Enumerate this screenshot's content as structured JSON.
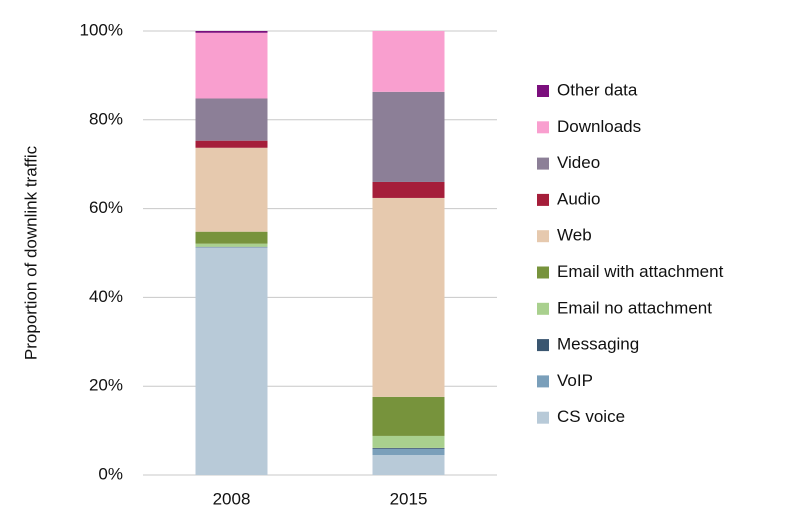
{
  "chart_data": {
    "type": "stacked_bar",
    "y_label": "Proportion of downlink traffic",
    "categories": [
      "2008",
      "2015"
    ],
    "series": [
      {
        "name": "CS voice",
        "color": "#b8cad8",
        "values": [
          51.2,
          4.5
        ]
      },
      {
        "name": "VoIP",
        "color": "#7a9fba",
        "values": [
          0.1,
          1.4
        ]
      },
      {
        "name": "Messaging",
        "color": "#3a5670",
        "values": [
          0.1,
          0.2
        ]
      },
      {
        "name": "Email no attachment",
        "color": "#a9d08e",
        "values": [
          0.7,
          2.7
        ]
      },
      {
        "name": "Email with attachment",
        "color": "#77933c",
        "values": [
          2.7,
          8.8
        ]
      },
      {
        "name": "Web",
        "color": "#e6c9ae",
        "values": [
          18.9,
          44.8
        ]
      },
      {
        "name": "Audio",
        "color": "#a51e3a",
        "values": [
          1.6,
          3.6
        ]
      },
      {
        "name": "Video",
        "color": "#8c7f97",
        "values": [
          9.5,
          20.3
        ]
      },
      {
        "name": "Downloads",
        "color": "#f99fcf",
        "values": [
          14.8,
          13.7
        ]
      },
      {
        "name": "Other data",
        "color": "#7b0f7d",
        "values": [
          0.4,
          0
        ]
      }
    ],
    "ylim": [
      0,
      100
    ],
    "yticks": [
      {
        "value": 0,
        "label": "0%"
      },
      {
        "value": 20,
        "label": "20%"
      },
      {
        "value": 40,
        "label": "40%"
      },
      {
        "value": 60,
        "label": "60%"
      },
      {
        "value": 80,
        "label": "80%"
      },
      {
        "value": 100,
        "label": "100%"
      }
    ],
    "grid": true,
    "legend": "right"
  }
}
